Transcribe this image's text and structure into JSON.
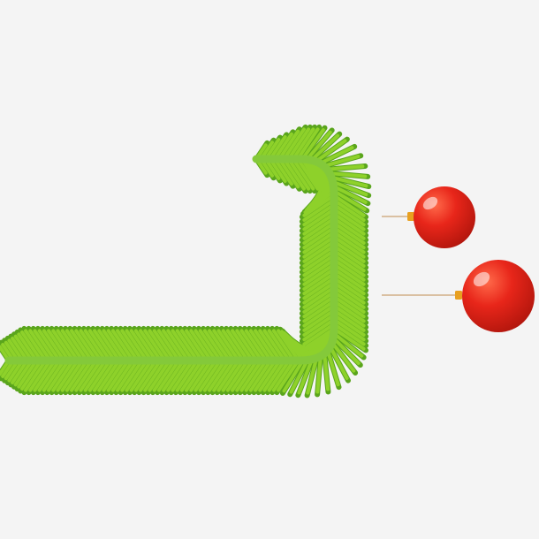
{
  "scene": {
    "subject": "garland",
    "background_color": "#f4f4f4",
    "colors": {
      "needle_light": "#8ed12a",
      "needle_dark": "#5aa51c",
      "stem": "#84c93a",
      "ornament_red": "#e8261a",
      "ornament_dark": "#b3160d",
      "ornament_highlight": "#ff8a6a",
      "cap_gold": "#e8a020",
      "string": "#c9a070"
    },
    "ornaments": [
      {
        "name": "ornament-1"
      },
      {
        "name": "ornament-2"
      }
    ]
  }
}
